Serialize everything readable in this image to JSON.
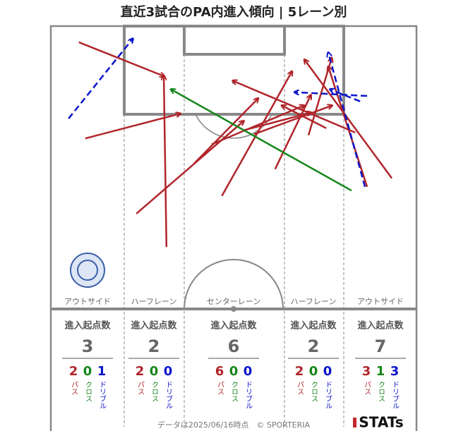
{
  "title": "直近3試合のPA内進入傾向 | 5レーン別",
  "colors": {
    "pass": "#b0252a",
    "cross": "#15861a",
    "dribble": "#0a14c8"
  },
  "lanes": [
    {
      "name": "アウトサイド",
      "heading": "進入起点数",
      "total": 3,
      "pass": 2,
      "cross": 0,
      "dribble": 1,
      "pass_label": "パス",
      "cross_label": "クロス",
      "dribble_label": "ドリブル"
    },
    {
      "name": "ハーフレーン",
      "heading": "進入起点数",
      "total": 2,
      "pass": 2,
      "cross": 0,
      "dribble": 0,
      "pass_label": "パス",
      "cross_label": "クロス",
      "dribble_label": "ドリブル"
    },
    {
      "name": "センターレーン",
      "heading": "進入起点数",
      "total": 6,
      "pass": 6,
      "cross": 0,
      "dribble": 0,
      "pass_label": "パス",
      "cross_label": "クロス",
      "dribble_label": "ドリブル"
    },
    {
      "name": "ハーフレーン",
      "heading": "進入起点数",
      "total": 2,
      "pass": 2,
      "cross": 0,
      "dribble": 0,
      "pass_label": "パス",
      "cross_label": "クロス",
      "dribble_label": "ドリブル"
    },
    {
      "name": "アウトサイド",
      "heading": "進入起点数",
      "total": 7,
      "pass": 3,
      "cross": 1,
      "dribble": 3,
      "pass_label": "パス",
      "cross_label": "クロス",
      "dribble_label": "ドリブル"
    }
  ],
  "actions": [
    {
      "kind": "pass",
      "from": [
        5.2,
        3.0
      ],
      "to": [
        21.0,
        9.3
      ]
    },
    {
      "kind": "pass",
      "from": [
        6.4,
        20.9
      ],
      "to": [
        24.0,
        16.3
      ]
    },
    {
      "kind": "pass",
      "from": [
        21.5,
        41.1
      ],
      "to": [
        21.0,
        9.3
      ]
    },
    {
      "kind": "pass",
      "from": [
        15.9,
        34.9
      ],
      "to": [
        35.8,
        17.7
      ]
    },
    {
      "kind": "pass",
      "from": [
        26.6,
        25.6
      ],
      "to": [
        38.5,
        13.5
      ]
    },
    {
      "kind": "pass",
      "from": [
        31.8,
        31.6
      ],
      "to": [
        44.8,
        8.5
      ]
    },
    {
      "kind": "pass",
      "from": [
        41.7,
        26.6
      ],
      "to": [
        48.3,
        12.9
      ]
    },
    {
      "kind": "pass",
      "from": [
        29.9,
        22.0
      ],
      "to": [
        47.0,
        14.8
      ]
    },
    {
      "kind": "pass",
      "from": [
        35.8,
        19.4
      ],
      "to": [
        48.3,
        16.1
      ]
    },
    {
      "kind": "pass",
      "from": [
        37.8,
        20.1
      ],
      "to": [
        52.2,
        14.8
      ]
    },
    {
      "kind": "pass",
      "from": [
        47.9,
        20.3
      ],
      "to": [
        52.2,
        6.0
      ]
    },
    {
      "kind": "pass",
      "from": [
        51.2,
        19.0
      ],
      "to": [
        43.0,
        14.8
      ]
    },
    {
      "kind": "pass",
      "from": [
        63.4,
        28.3
      ],
      "to": [
        47.2,
        6.3
      ]
    },
    {
      "kind": "pass",
      "from": [
        58.8,
        29.9
      ],
      "to": [
        51.6,
        7.6
      ]
    },
    {
      "kind": "pass",
      "from": [
        56.6,
        19.8
      ],
      "to": [
        33.9,
        10.2
      ]
    },
    {
      "kind": "cross",
      "from": [
        55.9,
        30.6
      ],
      "to": [
        22.4,
        11.8
      ]
    },
    {
      "kind": "dribble",
      "from": [
        3.3,
        17.2
      ],
      "to": [
        15.2,
        2.4
      ]
    },
    {
      "kind": "dribble",
      "from": [
        58.4,
        29.9
      ],
      "to": [
        51.6,
        5.0
      ]
    },
    {
      "kind": "dribble",
      "from": [
        58.8,
        13.0
      ],
      "to": [
        45.4,
        12.3
      ]
    },
    {
      "kind": "dribble",
      "from": [
        57.5,
        14.0
      ],
      "to": [
        52.0,
        11.8
      ]
    }
  ],
  "footer": "データは2025/06/16時点　© SPORTERIA",
  "brand": "STATs"
}
